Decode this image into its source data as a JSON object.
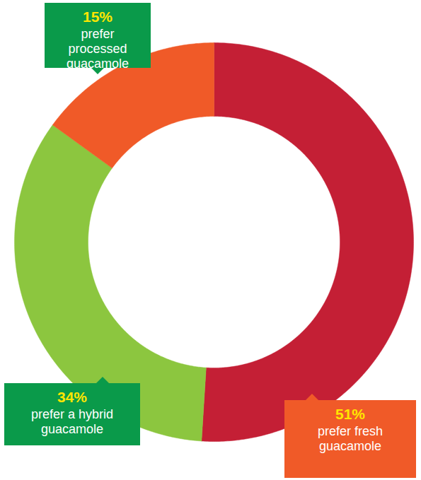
{
  "chart_data": {
    "type": "pie",
    "categories": [
      "prefer fresh guacamole",
      "prefer a hybrid guacamole",
      "prefer processed guacamole"
    ],
    "values": [
      51,
      34,
      15
    ],
    "value_labels": [
      "51%",
      "34%",
      "15%"
    ],
    "colors": [
      "#c41f35",
      "#8cc63f",
      "#f05a28"
    ],
    "data_labels": true
  }
}
